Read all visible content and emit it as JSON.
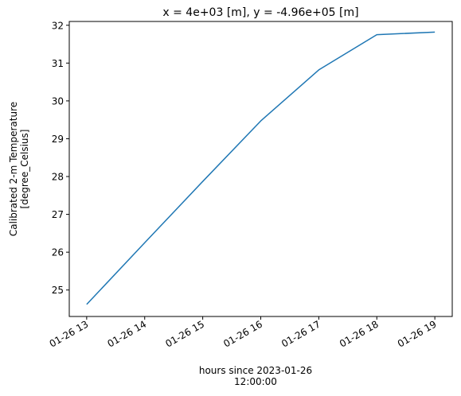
{
  "chart_data": {
    "type": "line",
    "title": "x = 4e+03 [m], y = -4.96e+05 [m]",
    "xlabel": [
      "hours since 2023-01-26",
      "12:00:00"
    ],
    "ylabel": [
      "Calibrated 2-m Temperature",
      "[degree_Celsius]"
    ],
    "x": [
      "01-26 13",
      "01-26 14",
      "01-26 15",
      "01-26 16",
      "01-26 17",
      "01-26 18",
      "01-26 19"
    ],
    "xtick_labels": [
      "01-26 13",
      "01-26 14",
      "01-26 15",
      "01-26 16",
      "01-26 17",
      "01-26 18",
      "01-26 19"
    ],
    "ytick_values": [
      25,
      26,
      27,
      28,
      29,
      30,
      31,
      32
    ],
    "ylim": [
      24.3,
      32.1
    ],
    "grid": false,
    "series": [
      {
        "color": "#1f77b4",
        "values": [
          24.62,
          26.25,
          27.87,
          29.47,
          30.82,
          31.75,
          31.82
        ]
      }
    ]
  }
}
